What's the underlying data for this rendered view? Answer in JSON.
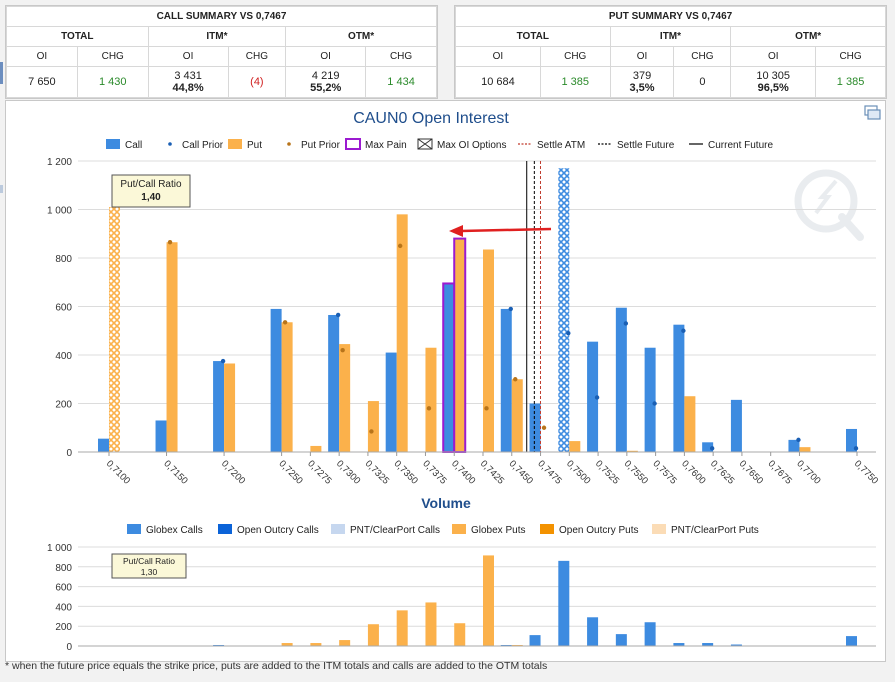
{
  "call_summary": {
    "title": "CALL SUMMARY VS 0,7467",
    "groups": [
      "TOTAL",
      "ITM*",
      "OTM*"
    ],
    "subheaders": [
      "OI",
      "CHG",
      "OI",
      "CHG",
      "OI",
      "CHG"
    ],
    "total_oi": "7 650",
    "total_chg": "1 430",
    "itm_oi": "3 431",
    "itm_pct": "44,8%",
    "itm_chg": "(4)",
    "otm_oi": "4 219",
    "otm_pct": "55,2%",
    "otm_chg": "1 434"
  },
  "put_summary": {
    "title": "PUT SUMMARY VS 0,7467",
    "groups": [
      "TOTAL",
      "ITM*",
      "OTM*"
    ],
    "subheaders": [
      "OI",
      "CHG",
      "OI",
      "CHG",
      "OI",
      "CHG"
    ],
    "total_oi": "10 684",
    "total_chg": "1 385",
    "itm_oi": "379",
    "itm_pct": "3,5%",
    "itm_chg": "0",
    "otm_oi": "10 305",
    "otm_pct": "96,5%",
    "otm_chg": "1 385"
  },
  "footnote": "* when the future price equals the strike price, puts are added to the ITM totals and calls are added to the OTM totals",
  "icons": {
    "corner": "window-copy-icon",
    "watermark": "q-logo-watermark-icon"
  },
  "colors": {
    "call": "#3d8be0",
    "put": "#fbb14b",
    "call_prior_dot": "#1a5fb4",
    "put_prior_dot": "#b8741a",
    "max_pain": "#9b1ad0",
    "settle_atm": "#c0392b",
    "arrow": "#e02020",
    "open_outcry_calls": "#0b63d8",
    "pnt_calls": "#c6d7ef",
    "open_outcry_puts": "#f39200",
    "pnt_puts": "#fbdcb6"
  },
  "chart_data": [
    {
      "type": "bar",
      "title": "CAUN0 Open Interest",
      "legend": [
        "Call",
        "Call Prior",
        "Put",
        "Put Prior",
        "Max Pain",
        "Max OI Options",
        "Settle ATM",
        "Settle Future",
        "Current Future"
      ],
      "legend_position": "top",
      "grid": true,
      "ylim": [
        0,
        1200
      ],
      "yticks": [
        0,
        200,
        400,
        600,
        800,
        1000,
        1200
      ],
      "ytick_labels": [
        "0",
        "200",
        "400",
        "600",
        "800",
        "1 000",
        "1 200"
      ],
      "categories": [
        "0,7100",
        "0,7150",
        "0,7200",
        "0,7250",
        "0,7275",
        "0,7300",
        "0,7325",
        "0,7350",
        "0,7375",
        "0,7400",
        "0,7425",
        "0,7450",
        "0,7475",
        "0,7500",
        "0,7525",
        "0,7550",
        "0,7575",
        "0,7600",
        "0,7625",
        "0,7650",
        "0,7675",
        "0,7700",
        "0,7750"
      ],
      "x": [
        0.71,
        0.715,
        0.72,
        0.725,
        0.7275,
        0.73,
        0.7325,
        0.735,
        0.7375,
        0.74,
        0.7425,
        0.745,
        0.7475,
        0.75,
        0.7525,
        0.755,
        0.7575,
        0.76,
        0.7625,
        0.765,
        0.7675,
        0.77,
        0.775
      ],
      "series": [
        {
          "name": "Call",
          "values": [
            55,
            130,
            375,
            590,
            0,
            565,
            0,
            410,
            0,
            695,
            0,
            590,
            200,
            1170,
            455,
            595,
            430,
            525,
            40,
            215,
            0,
            50,
            95
          ]
        },
        {
          "name": "Call Prior",
          "values": [
            null,
            null,
            375,
            null,
            null,
            565,
            null,
            null,
            null,
            null,
            null,
            590,
            null,
            490,
            225,
            530,
            200,
            500,
            15,
            null,
            null,
            50,
            15
          ]
        },
        {
          "name": "Put",
          "values": [
            1010,
            865,
            365,
            535,
            25,
            445,
            210,
            980,
            430,
            880,
            835,
            300,
            0,
            45,
            0,
            5,
            0,
            230,
            0,
            0,
            0,
            20,
            0
          ]
        },
        {
          "name": "Put Prior",
          "values": [
            null,
            865,
            null,
            535,
            null,
            420,
            85,
            850,
            180,
            null,
            180,
            300,
            100,
            null,
            null,
            null,
            null,
            null,
            null,
            null,
            null,
            null,
            null
          ]
        }
      ],
      "max_pain_strike": "0,7400",
      "max_oi_options": [
        {
          "strike": "0,7100",
          "type": "Put",
          "value": 1010
        },
        {
          "strike": "0,7500",
          "type": "Call",
          "value": 1170
        }
      ],
      "settle_atm": 0.7468,
      "settle_future": 0.7467,
      "current_future": 0.7463,
      "annotation": {
        "label": "Put/Call Ratio",
        "value": "1,40"
      }
    },
    {
      "type": "bar",
      "title": "Volume",
      "legend": [
        "Globex Calls",
        "Open Outcry Calls",
        "PNT/ClearPort Calls",
        "Globex Puts",
        "Open Outcry Puts",
        "PNT/ClearPort Puts"
      ],
      "legend_position": "top",
      "grid": true,
      "ylim": [
        0,
        1000
      ],
      "yticks": [
        0,
        200,
        400,
        600,
        800,
        1000
      ],
      "ytick_labels": [
        "0",
        "200",
        "400",
        "600",
        "800",
        "1 000"
      ],
      "x": [
        0.71,
        0.715,
        0.72,
        0.725,
        0.7275,
        0.73,
        0.7325,
        0.735,
        0.7375,
        0.74,
        0.7425,
        0.745,
        0.7475,
        0.75,
        0.7525,
        0.755,
        0.7575,
        0.76,
        0.7625,
        0.765,
        0.7675,
        0.77,
        0.775
      ],
      "series": [
        {
          "name": "Globex Calls",
          "values": [
            0,
            0,
            10,
            0,
            0,
            0,
            0,
            0,
            0,
            0,
            0,
            10,
            110,
            860,
            290,
            120,
            240,
            30,
            30,
            15,
            0,
            0,
            100
          ]
        },
        {
          "name": "Globex Puts",
          "values": [
            0,
            0,
            0,
            30,
            30,
            60,
            220,
            360,
            440,
            230,
            915,
            10,
            0,
            0,
            0,
            0,
            0,
            0,
            0,
            0,
            0,
            0,
            0
          ]
        }
      ],
      "annotation": {
        "label": "Put/Call Ratio",
        "value": "1,30"
      }
    }
  ]
}
